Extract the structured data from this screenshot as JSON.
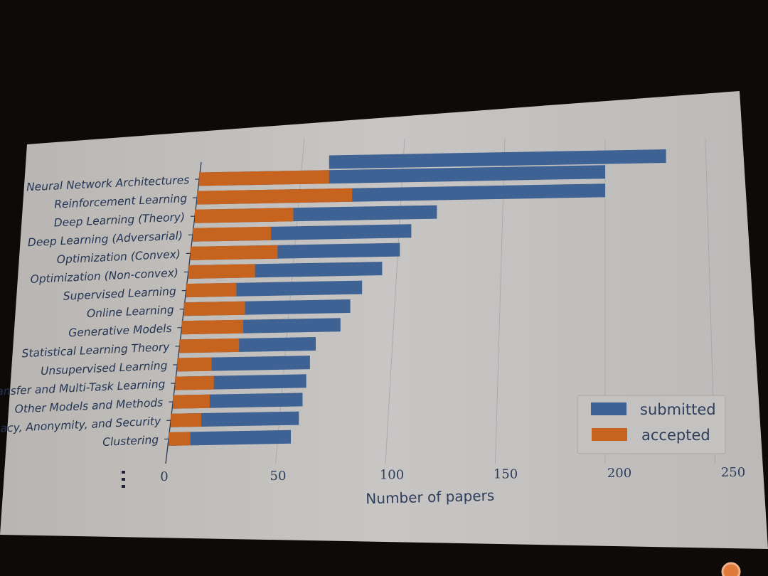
{
  "chart_data": {
    "type": "bar",
    "orientation": "horizontal",
    "stacking": "overlay",
    "categories": [
      "Neural Network Architectures",
      "Reinforcement Learning",
      "Deep Learning (Theory)",
      "Deep Learning (Adversarial)",
      "Optimization (Convex)",
      "Optimization (Non-convex)",
      "Supervised Learning",
      "Online Learning",
      "Generative Models",
      "Statistical Learning Theory",
      "Unsupervised Learning",
      "Transfer and Multi-Task Learning",
      "Other Models and Methods",
      "Privacy, Anonymity, and Security",
      "Clustering"
    ],
    "series": [
      {
        "name": "submitted",
        "color": "#3f6294",
        "values": [
          230,
          200,
          118,
          106,
          101,
          93,
          84,
          79,
          75,
          64,
          62,
          61,
          60,
          59,
          56
        ]
      },
      {
        "name": "accepted",
        "color": "#c6641f",
        "values": [
          64,
          76,
          48,
          38,
          42,
          32,
          24,
          29,
          29,
          28,
          16,
          18,
          17,
          14,
          10
        ]
      }
    ],
    "xlabel": "Number of papers",
    "ylabel": "",
    "xlim": [
      0,
      250
    ],
    "xticks": [
      "0",
      "50",
      "100",
      "150",
      "200",
      "250"
    ],
    "grid": true,
    "legend_position": "bottom-right",
    "first_submitted_row_offset": true
  }
}
